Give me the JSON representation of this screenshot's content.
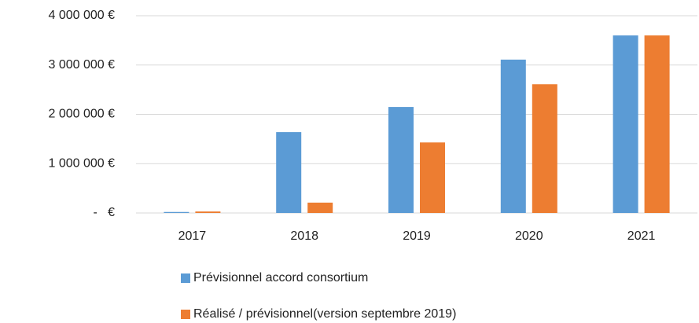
{
  "chart_data": {
    "type": "bar",
    "categories": [
      "2017",
      "2018",
      "2019",
      "2020",
      "2021"
    ],
    "series": [
      {
        "name": "Prévisionnel accord consortium",
        "color": "#5b9bd5",
        "values": [
          20000,
          1640000,
          2150000,
          3110000,
          3600000
        ]
      },
      {
        "name": "Réalisé / prévisionnel(version septembre 2019)",
        "color": "#ed7d31",
        "values": [
          30000,
          210000,
          1430000,
          2610000,
          3600000
        ]
      }
    ],
    "ylim": [
      0,
      4000000
    ],
    "yticks": [
      {
        "value": 0,
        "label": "-   €"
      },
      {
        "value": 1000000,
        "label": "1 000 000 €"
      },
      {
        "value": 2000000,
        "label": "2 000 000 €"
      },
      {
        "value": 3000000,
        "label": "3 000 000 €"
      },
      {
        "value": 4000000,
        "label": "4 000 000 €"
      }
    ],
    "grid": true,
    "legend": "bottom"
  }
}
